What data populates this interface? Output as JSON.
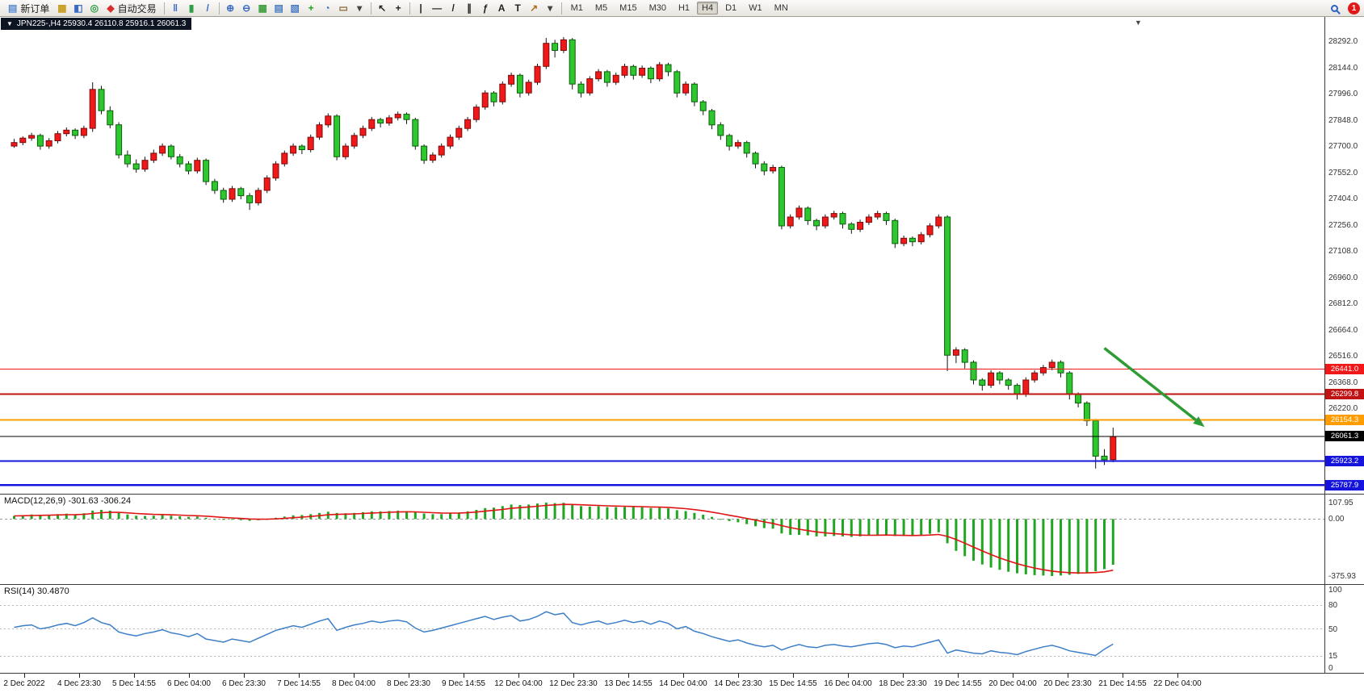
{
  "toolbar": {
    "items": [
      {
        "t": "button",
        "n": "new-order-button",
        "g": "▤",
        "c": "#5b8ad2",
        "label": "新订单"
      },
      {
        "t": "icon",
        "n": "charts-profile-icon",
        "g": "▦",
        "c": "#c79a1e"
      },
      {
        "t": "icon",
        "n": "market-watch-icon",
        "g": "◧",
        "c": "#3a6bc4"
      },
      {
        "t": "icon",
        "n": "navigator-icon",
        "g": "◎",
        "c": "#2f9e44"
      },
      {
        "t": "button",
        "n": "auto-trading-button",
        "g": "◆",
        "c": "#d43030",
        "label": "自动交易"
      },
      {
        "t": "sep"
      },
      {
        "t": "icon",
        "n": "chart-bars-icon",
        "g": "‖",
        "c": "#3a6bc4"
      },
      {
        "t": "icon",
        "n": "chart-candles-icon",
        "g": "▮",
        "c": "#2f9e44"
      },
      {
        "t": "icon",
        "n": "chart-line-icon",
        "g": "/",
        "c": "#3a6bc4"
      },
      {
        "t": "sep"
      },
      {
        "t": "icon",
        "n": "zoom-in-icon",
        "g": "⊕",
        "c": "#3a6bc4"
      },
      {
        "t": "icon",
        "n": "zoom-out-icon",
        "g": "⊖",
        "c": "#3a6bc4"
      },
      {
        "t": "icon",
        "n": "tile-windows-icon",
        "g": "▦",
        "c": "#3f9e3f"
      },
      {
        "t": "icon",
        "n": "arrange-windows-icon",
        "g": "▤",
        "c": "#4a7ac0"
      },
      {
        "t": "icon",
        "n": "cascade-windows-icon",
        "g": "▧",
        "c": "#4a7ac0"
      },
      {
        "t": "icon",
        "n": "indicators-icon",
        "g": "+",
        "c": "#1f9e1f"
      },
      {
        "t": "icon",
        "n": "period-icon",
        "g": "◔",
        "c": "#3a6bc4"
      },
      {
        "t": "icon",
        "n": "templates-icon",
        "g": "▭",
        "c": "#8a6a3a"
      },
      {
        "t": "icon",
        "n": "dropdown-icon",
        "g": "▾",
        "c": "#444"
      },
      {
        "t": "sep"
      },
      {
        "t": "icon",
        "n": "cursor-icon",
        "g": "↖",
        "c": "#222"
      },
      {
        "t": "icon",
        "n": "crosshair-icon",
        "g": "+",
        "c": "#222"
      },
      {
        "t": "sep"
      },
      {
        "t": "icon",
        "n": "vertical-line-icon",
        "g": "|",
        "c": "#222"
      },
      {
        "t": "icon",
        "n": "horizontal-line-icon",
        "g": "—",
        "c": "#222"
      },
      {
        "t": "icon",
        "n": "trendline-icon",
        "g": "/",
        "c": "#222"
      },
      {
        "t": "icon",
        "n": "channel-icon",
        "g": "∥",
        "c": "#222"
      },
      {
        "t": "icon",
        "n": "fibonacci-icon",
        "g": "ƒ",
        "c": "#222"
      },
      {
        "t": "icon",
        "n": "text-icon",
        "g": "A",
        "c": "#222"
      },
      {
        "t": "icon",
        "n": "label-icon",
        "g": "T",
        "c": "#222"
      },
      {
        "t": "icon",
        "n": "arrows-tool-icon",
        "g": "↗",
        "c": "#b06820"
      },
      {
        "t": "icon",
        "n": "dropdown-icon",
        "g": "▾",
        "c": "#444"
      },
      {
        "t": "sep"
      },
      {
        "t": "tfs"
      },
      {
        "t": "spacer"
      },
      {
        "t": "search"
      },
      {
        "t": "badge"
      }
    ],
    "timeframes": [
      "M1",
      "M5",
      "M15",
      "M30",
      "H1",
      "H4",
      "D1",
      "W1",
      "MN"
    ],
    "active_timeframe": "H4",
    "notification_count": "1"
  },
  "chart": {
    "title": "JPN225-,H4  25930.4 26110.8 25916.1 26061.3"
  },
  "chart_data": {
    "type": "candlestick",
    "instrument": "JPN225-",
    "timeframe": "H4",
    "ohlc_current": {
      "open": "25930.4",
      "high": "26110.8",
      "low": "25916.1",
      "close": "26061.3"
    },
    "styles": {
      "bull_fill": "#f01818",
      "bull_stroke": "#7a0c0c",
      "bear_fill": "#2fc72f",
      "bear_stroke": "#0b5e0b",
      "wick": "#141414",
      "macd_bar": "#21a621",
      "macd_signal": "#e01414",
      "rsi_line": "#3d7ec8",
      "background": "#ffffff"
    },
    "price_axis": {
      "min": 25738,
      "max": 28429,
      "ticks": [
        "28292.0",
        "28144.0",
        "27996.0",
        "27848.0",
        "27700.0",
        "27552.0",
        "27404.0",
        "27256.0",
        "27108.0",
        "26960.0",
        "26812.0",
        "26664.0",
        "26516.0",
        "26368.0",
        "26220.0"
      ]
    },
    "hlines": [
      {
        "price": 26441.0,
        "label": "26441.0",
        "color": "#f01818",
        "width": 1.2
      },
      {
        "price": 26299.8,
        "label": "26299.8",
        "color": "#c01414",
        "width": 2
      },
      {
        "price": 26154.3,
        "label": "26154.3",
        "color": "#ff9c00",
        "width": 2
      },
      {
        "price": 26061.3,
        "label": "26061.3",
        "color": "#000000",
        "width": 1
      },
      {
        "price": 25923.2,
        "label": "25923.2",
        "color": "#1414dc",
        "width": 2
      },
      {
        "price": 25787.9,
        "label": "25787.9",
        "color": "#1414dc",
        "width": 2.5
      }
    ],
    "arrow": {
      "bar1": 125,
      "price1": 26560,
      "bar2": 136.5,
      "price2": 26115,
      "color": "#2e9b35"
    },
    "candles": [
      [
        27700,
        27740,
        27690,
        27720
      ],
      [
        27720,
        27755,
        27705,
        27745
      ],
      [
        27745,
        27775,
        27730,
        27760
      ],
      [
        27760,
        27770,
        27680,
        27700
      ],
      [
        27700,
        27745,
        27685,
        27730
      ],
      [
        27730,
        27785,
        27715,
        27770
      ],
      [
        27770,
        27805,
        27755,
        27790
      ],
      [
        27790,
        27800,
        27740,
        27760
      ],
      [
        27760,
        27815,
        27745,
        27800
      ],
      [
        27800,
        28060,
        27780,
        28020
      ],
      [
        28020,
        28040,
        27880,
        27900
      ],
      [
        27900,
        27925,
        27800,
        27820
      ],
      [
        27820,
        27835,
        27630,
        27650
      ],
      [
        27650,
        27675,
        27580,
        27600
      ],
      [
        27600,
        27625,
        27550,
        27570
      ],
      [
        27570,
        27640,
        27555,
        27620
      ],
      [
        27620,
        27680,
        27605,
        27660
      ],
      [
        27660,
        27715,
        27645,
        27700
      ],
      [
        27700,
        27710,
        27625,
        27640
      ],
      [
        27640,
        27655,
        27580,
        27600
      ],
      [
        27600,
        27615,
        27540,
        27560
      ],
      [
        27560,
        27635,
        27545,
        27620
      ],
      [
        27620,
        27630,
        27480,
        27500
      ],
      [
        27500,
        27515,
        27430,
        27450
      ],
      [
        27450,
        27465,
        27380,
        27400
      ],
      [
        27400,
        27475,
        27385,
        27460
      ],
      [
        27460,
        27470,
        27400,
        27420
      ],
      [
        27420,
        27435,
        27340,
        27380
      ],
      [
        27380,
        27465,
        27365,
        27450
      ],
      [
        27450,
        27535,
        27435,
        27520
      ],
      [
        27520,
        27615,
        27505,
        27600
      ],
      [
        27600,
        27675,
        27585,
        27660
      ],
      [
        27660,
        27715,
        27645,
        27700
      ],
      [
        27700,
        27710,
        27655,
        27680
      ],
      [
        27680,
        27765,
        27665,
        27750
      ],
      [
        27750,
        27835,
        27735,
        27820
      ],
      [
        27820,
        27885,
        27805,
        27870
      ],
      [
        27870,
        27880,
        27620,
        27640
      ],
      [
        27640,
        27715,
        27625,
        27700
      ],
      [
        27700,
        27775,
        27685,
        27760
      ],
      [
        27760,
        27815,
        27745,
        27800
      ],
      [
        27800,
        27865,
        27785,
        27850
      ],
      [
        27850,
        27860,
        27805,
        27830
      ],
      [
        27830,
        27875,
        27815,
        27860
      ],
      [
        27860,
        27895,
        27845,
        27880
      ],
      [
        27880,
        27890,
        27825,
        27850
      ],
      [
        27850,
        27860,
        27680,
        27700
      ],
      [
        27700,
        27710,
        27600,
        27620
      ],
      [
        27620,
        27665,
        27605,
        27650
      ],
      [
        27650,
        27715,
        27635,
        27700
      ],
      [
        27700,
        27765,
        27685,
        27750
      ],
      [
        27750,
        27815,
        27735,
        27800
      ],
      [
        27800,
        27865,
        27785,
        27850
      ],
      [
        27850,
        27935,
        27835,
        27920
      ],
      [
        27920,
        28015,
        27905,
        28000
      ],
      [
        28000,
        28010,
        27925,
        27950
      ],
      [
        27950,
        28065,
        27935,
        28050
      ],
      [
        28050,
        28115,
        28035,
        28100
      ],
      [
        28100,
        28110,
        27975,
        28000
      ],
      [
        28000,
        28075,
        27985,
        28060
      ],
      [
        28060,
        28165,
        28045,
        28150
      ],
      [
        28150,
        28310,
        28135,
        28280
      ],
      [
        28280,
        28300,
        28200,
        28240
      ],
      [
        28240,
        28315,
        28225,
        28300
      ],
      [
        28300,
        28310,
        28020,
        28050
      ],
      [
        28050,
        28065,
        27975,
        28000
      ],
      [
        28000,
        28095,
        27985,
        28080
      ],
      [
        28080,
        28135,
        28065,
        28120
      ],
      [
        28120,
        28130,
        28035,
        28060
      ],
      [
        28060,
        28115,
        28045,
        28100
      ],
      [
        28100,
        28165,
        28085,
        28150
      ],
      [
        28150,
        28160,
        28075,
        28100
      ],
      [
        28100,
        28155,
        28085,
        28140
      ],
      [
        28140,
        28150,
        28055,
        28080
      ],
      [
        28080,
        28175,
        28065,
        28160
      ],
      [
        28160,
        28170,
        28095,
        28120
      ],
      [
        28120,
        28130,
        27975,
        28000
      ],
      [
        28000,
        28065,
        27985,
        28050
      ],
      [
        28050,
        28060,
        27925,
        27950
      ],
      [
        27950,
        27960,
        27875,
        27900
      ],
      [
        27900,
        27910,
        27795,
        27820
      ],
      [
        27820,
        27835,
        27735,
        27760
      ],
      [
        27760,
        27770,
        27675,
        27700
      ],
      [
        27700,
        27735,
        27685,
        27720
      ],
      [
        27720,
        27730,
        27635,
        27660
      ],
      [
        27660,
        27670,
        27575,
        27600
      ],
      [
        27600,
        27615,
        27535,
        27560
      ],
      [
        27560,
        27595,
        27545,
        27580
      ],
      [
        27580,
        27590,
        27230,
        27250
      ],
      [
        27250,
        27315,
        27235,
        27300
      ],
      [
        27300,
        27365,
        27285,
        27350
      ],
      [
        27350,
        27360,
        27255,
        27280
      ],
      [
        27280,
        27290,
        27225,
        27250
      ],
      [
        27250,
        27315,
        27235,
        27300
      ],
      [
        27300,
        27335,
        27285,
        27320
      ],
      [
        27320,
        27330,
        27235,
        27260
      ],
      [
        27260,
        27270,
        27205,
        27230
      ],
      [
        27230,
        27285,
        27215,
        27270
      ],
      [
        27270,
        27315,
        27255,
        27300
      ],
      [
        27300,
        27335,
        27285,
        27320
      ],
      [
        27320,
        27330,
        27255,
        27280
      ],
      [
        27280,
        27290,
        27125,
        27150
      ],
      [
        27150,
        27195,
        27135,
        27180
      ],
      [
        27180,
        27190,
        27135,
        27160
      ],
      [
        27160,
        27215,
        27145,
        27200
      ],
      [
        27200,
        27265,
        27185,
        27250
      ],
      [
        27250,
        27315,
        27235,
        27300
      ],
      [
        27300,
        27310,
        26430,
        26520
      ],
      [
        26520,
        26565,
        26475,
        26550
      ],
      [
        26550,
        26560,
        26445,
        26480
      ],
      [
        26480,
        26490,
        26355,
        26380
      ],
      [
        26380,
        26390,
        26320,
        26350
      ],
      [
        26350,
        26435,
        26335,
        26420
      ],
      [
        26420,
        26430,
        26355,
        26380
      ],
      [
        26380,
        26390,
        26325,
        26350
      ],
      [
        26350,
        26360,
        26270,
        26300
      ],
      [
        26300,
        26395,
        26285,
        26380
      ],
      [
        26380,
        26435,
        26365,
        26420
      ],
      [
        26420,
        26465,
        26405,
        26450
      ],
      [
        26450,
        26495,
        26435,
        26480
      ],
      [
        26480,
        26490,
        26395,
        26420
      ],
      [
        26420,
        26430,
        26270,
        26300
      ],
      [
        26300,
        26310,
        26225,
        26250
      ],
      [
        26250,
        26260,
        26120,
        26150
      ],
      [
        26150,
        26160,
        25880,
        25950
      ],
      [
        25950,
        25990,
        25900,
        25930
      ],
      [
        25930.4,
        26110.8,
        25916.1,
        26061.3
      ]
    ],
    "macd": {
      "title": "MACD(12,26,9) -301.63 -306.24",
      "max": 107.95,
      "min": -375.93,
      "scale_labels": [
        "107.95",
        "0.00",
        "-375.93"
      ],
      "histogram": [
        20,
        25,
        30,
        28,
        28,
        32,
        35,
        30,
        38,
        55,
        60,
        55,
        40,
        30,
        22,
        20,
        22,
        26,
        22,
        18,
        14,
        16,
        8,
        0,
        -6,
        -4,
        -8,
        -12,
        -8,
        0,
        8,
        16,
        24,
        26,
        32,
        40,
        48,
        40,
        38,
        40,
        45,
        50,
        50,
        52,
        54,
        52,
        44,
        36,
        32,
        32,
        36,
        42,
        50,
        60,
        72,
        75,
        85,
        95,
        92,
        95,
        102,
        107.95,
        105,
        107,
        95,
        85,
        82,
        84,
        78,
        78,
        80,
        78,
        78,
        72,
        74,
        70,
        58,
        52,
        40,
        28,
        14,
        0,
        -14,
        -22,
        -34,
        -48,
        -60,
        -64,
        -95,
        -105,
        -105,
        -108,
        -115,
        -115,
        -112,
        -115,
        -118,
        -115,
        -110,
        -105,
        -102,
        -112,
        -112,
        -112,
        -105,
        -98,
        -88,
        -160,
        -210,
        -245,
        -275,
        -300,
        -320,
        -335,
        -348,
        -358,
        -365,
        -370,
        -373,
        -375.93,
        -372,
        -368,
        -362,
        -355,
        -345,
        -330,
        -301.63
      ]
    },
    "rsi": {
      "title": "RSI(14) 30.4870",
      "levels": [
        80,
        50,
        15
      ],
      "scale_labels": [
        "100",
        "80",
        "50",
        "15",
        "0"
      ],
      "values": [
        52,
        54,
        55,
        50,
        52,
        55,
        57,
        54,
        58,
        64,
        58,
        55,
        46,
        43,
        41,
        44,
        46,
        49,
        45,
        43,
        40,
        44,
        37,
        35,
        33,
        37,
        35,
        33,
        38,
        43,
        48,
        51,
        54,
        52,
        56,
        60,
        63,
        48,
        52,
        55,
        57,
        60,
        58,
        60,
        61,
        59,
        51,
        46,
        48,
        51,
        54,
        57,
        60,
        63,
        66,
        62,
        65,
        67,
        60,
        62,
        66,
        72,
        68,
        70,
        58,
        55,
        58,
        60,
        56,
        58,
        61,
        58,
        60,
        56,
        60,
        57,
        50,
        53,
        47,
        44,
        40,
        37,
        34,
        36,
        32,
        29,
        27,
        29,
        23,
        27,
        30,
        27,
        26,
        29,
        30,
        28,
        27,
        29,
        31,
        32,
        30,
        26,
        28,
        27,
        30,
        33,
        36,
        19,
        23,
        21,
        19,
        18,
        22,
        20,
        19,
        17,
        21,
        24,
        27,
        29,
        26,
        22,
        20,
        18,
        16,
        24,
        30.49
      ]
    },
    "time_labels": [
      "2 Dec 2022",
      "4 Dec 23:30",
      "5 Dec 14:55",
      "6 Dec 04:00",
      "6 Dec 23:30",
      "7 Dec 14:55",
      "8 Dec 04:00",
      "8 Dec 23:30",
      "9 Dec 14:55",
      "12 Dec 04:00",
      "12 Dec 23:30",
      "13 Dec 14:55",
      "14 Dec 04:00",
      "14 Dec 23:30",
      "15 Dec 14:55",
      "16 Dec 04:00",
      "18 Dec 23:30",
      "19 Dec 14:55",
      "20 Dec 04:00",
      "20 Dec 23:30",
      "21 Dec 14:55",
      "22 Dec 04:00"
    ]
  }
}
